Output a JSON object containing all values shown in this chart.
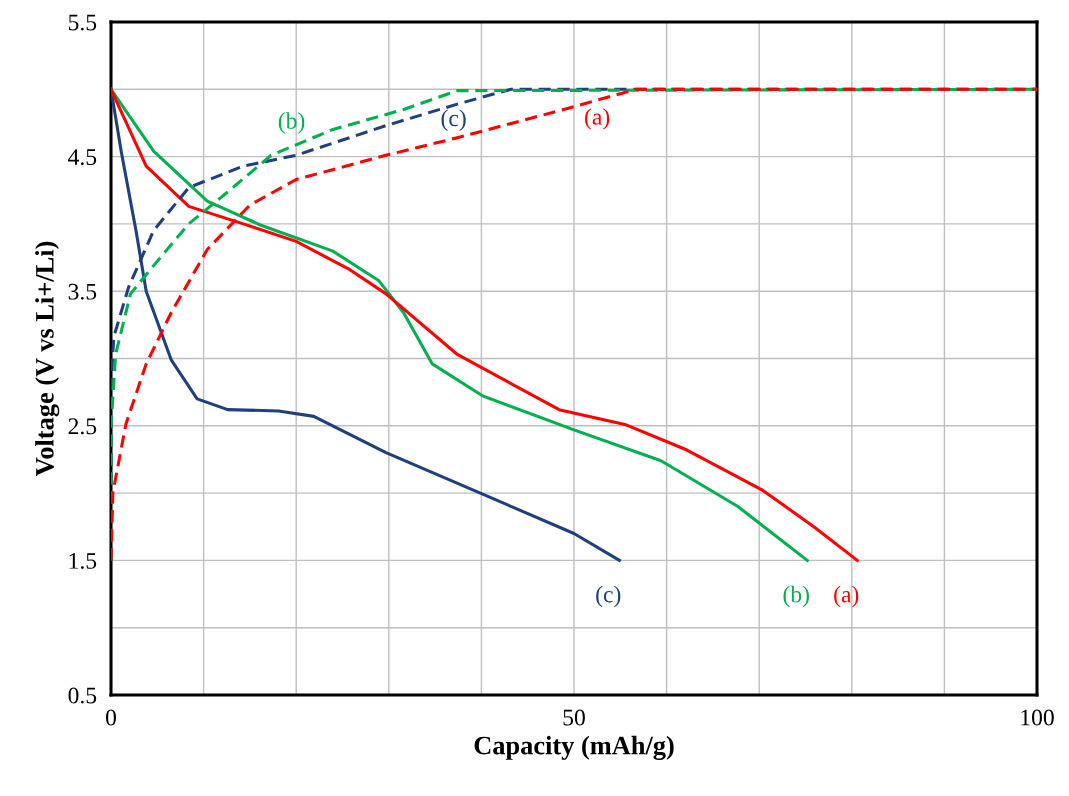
{
  "chart_data": {
    "type": "line",
    "xlabel": "Capacity (mAh/g)",
    "ylabel": "Voltage (V vs Li+/Li)",
    "xlim": [
      0,
      100
    ],
    "ylim": [
      0.5,
      5.5
    ],
    "xticks": [
      0,
      {
        "value": 10,
        "label": null
      },
      {
        "value": 20,
        "label": null
      },
      {
        "value": 30,
        "label": null
      },
      {
        "value": 40,
        "label": null
      },
      50,
      {
        "value": 60,
        "label": null
      },
      {
        "value": 70,
        "label": null
      },
      {
        "value": 80,
        "label": null
      },
      {
        "value": 90,
        "label": null
      },
      100
    ],
    "yticks": [
      0.5,
      {
        "value": 1.0,
        "label": null
      },
      1.5,
      {
        "value": 2.0,
        "label": null
      },
      2.5,
      {
        "value": 3.0,
        "label": null
      },
      3.5,
      {
        "value": 4.0,
        "label": null
      },
      4.5,
      {
        "value": 5.0,
        "label": null
      },
      5.5
    ],
    "grid": true,
    "legend": false,
    "series": [
      {
        "name": "(c)",
        "color": "#1f3f7f",
        "line_style": "solid",
        "x": [
          0,
          1.1,
          2.7,
          3.8,
          6.5,
          9.3,
          12.6,
          18.1,
          21.9,
          29.7,
          40.2,
          50,
          54.9
        ],
        "values": [
          5.0,
          4.54,
          3.95,
          3.5,
          2.99,
          2.7,
          2.62,
          2.61,
          2.57,
          2.3,
          1.99,
          1.7,
          1.5
        ]
      },
      {
        "name": "(b)",
        "color": "#00b050",
        "line_style": "solid",
        "x": [
          0,
          4.6,
          10.4,
          16.2,
          23.9,
          28.9,
          31.6,
          34.7,
          40.2,
          50,
          59.4,
          67.7,
          75.2
        ],
        "values": [
          5.0,
          4.54,
          4.17,
          3.99,
          3.8,
          3.58,
          3.34,
          2.96,
          2.72,
          2.47,
          2.24,
          1.9,
          1.5
        ]
      },
      {
        "name": "(a)",
        "color": "#ff0000",
        "line_style": "solid",
        "x": [
          0,
          3.8,
          8.4,
          14.3,
          20,
          25.8,
          29.7,
          37.4,
          48.4,
          55.5,
          62.2,
          70.4,
          75.9,
          80.6
        ],
        "values": [
          5.0,
          4.43,
          4.13,
          4.0,
          3.87,
          3.66,
          3.48,
          3.03,
          2.62,
          2.51,
          2.32,
          2.02,
          1.75,
          1.5
        ]
      },
      {
        "name": "(c)",
        "color": "#1f3f7f",
        "line_style": "dashed",
        "x": [
          0,
          0,
          0.3,
          1.9,
          4.6,
          8.4,
          14.3,
          20,
          29.7,
          37.4,
          43.2,
          100
        ],
        "values": [
          1.5,
          2.8,
          3.16,
          3.53,
          3.95,
          4.27,
          4.43,
          4.51,
          4.73,
          4.89,
          5.0,
          5.0
        ]
      },
      {
        "name": "(b)",
        "color": "#00b050",
        "line_style": "dashed",
        "x": [
          0,
          0,
          0.5,
          2.1,
          4.6,
          8.4,
          12.3,
          17.3,
          23.9,
          31.6,
          37.4,
          100
        ],
        "values": [
          1.5,
          2.5,
          3.03,
          3.48,
          3.69,
          4.0,
          4.22,
          4.51,
          4.7,
          4.85,
          4.99,
          5.0
        ]
      },
      {
        "name": "(a)",
        "color": "#ff0000",
        "line_style": "dashed",
        "x": [
          0,
          0.2,
          1.6,
          3.8,
          6.5,
          10.4,
          15,
          20,
          29.7,
          37.4,
          48.9,
          56.7,
          100
        ],
        "values": [
          1.5,
          2.0,
          2.51,
          2.96,
          3.34,
          3.81,
          4.14,
          4.33,
          4.51,
          4.64,
          4.85,
          5.0,
          5.0
        ]
      }
    ]
  }
}
